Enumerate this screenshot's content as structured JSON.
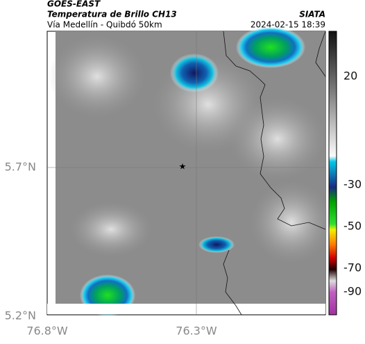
{
  "header": {
    "title": "GOES-EAST",
    "subtitle": "Temperatura de Brillo CH13",
    "route": "Vía Medellín - Quibdó 50km",
    "source": "SIATA",
    "timestamp": "2024-02-15 18:39"
  },
  "axes": {
    "lat_labels": [
      "5.7°N",
      "5.2°N"
    ],
    "lon_labels": [
      "76.8°W",
      "76.3°W"
    ]
  },
  "colorbar": {
    "ticks": [
      "20",
      "-30",
      "-50",
      "-70",
      "-90"
    ]
  }
}
